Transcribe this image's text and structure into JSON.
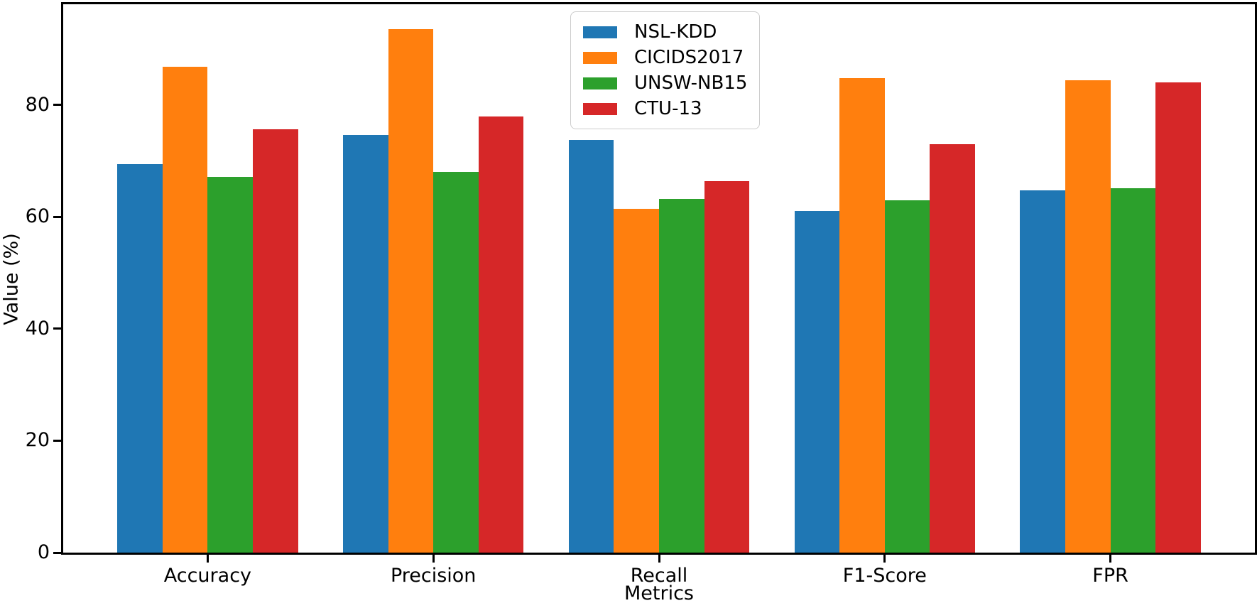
{
  "chart_data": {
    "type": "bar",
    "title": "",
    "xlabel": "Metrics",
    "ylabel": "Value (%)",
    "categories": [
      "Accuracy",
      "Precision",
      "Recall",
      "F1-Score",
      "FPR"
    ],
    "series": [
      {
        "name": "NSL-KDD",
        "color": "#1f77b4",
        "values": [
          69.4,
          74.7,
          73.7,
          61.1,
          64.8
        ]
      },
      {
        "name": "CICIDS2017",
        "color": "#ff7f0e",
        "values": [
          86.8,
          93.5,
          61.4,
          84.8,
          84.4
        ]
      },
      {
        "name": "UNSW-NB15",
        "color": "#2ca02c",
        "values": [
          67.1,
          68.0,
          63.2,
          63.0,
          65.1
        ]
      },
      {
        "name": "CTU-13",
        "color": "#d62728",
        "values": [
          75.6,
          78.0,
          66.4,
          73.0,
          84.1
        ]
      }
    ],
    "y_ticks": [
      0,
      20,
      40,
      60,
      80
    ],
    "ylim": [
      0,
      98
    ],
    "x_domain": [
      -0.64,
      4.64
    ],
    "bar_width": 0.2,
    "grid": false,
    "legend_position": "upper center",
    "axis_color": "#000000",
    "background_color": "#ffffff"
  }
}
